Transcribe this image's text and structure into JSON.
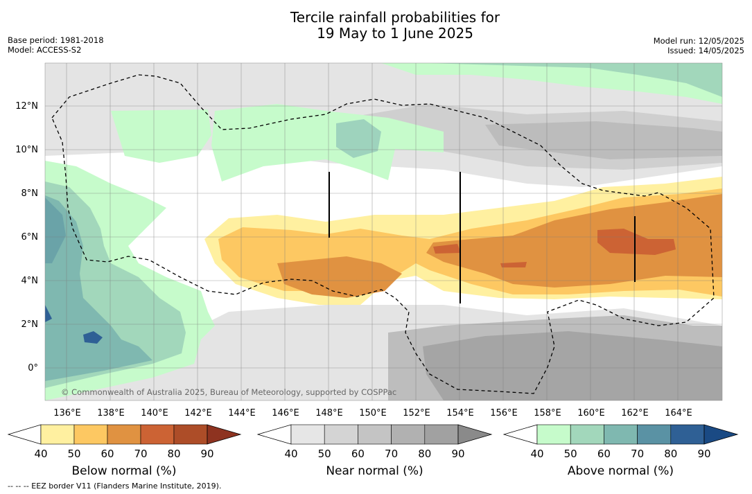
{
  "title_line1": "Tercile rainfall probabilities for",
  "title_line2": "19 May to 1 June 2025",
  "meta_left": {
    "base_period": "Base period: 1981-2018",
    "model": "Model: ACCESS-S2"
  },
  "meta_right": {
    "model_run": "Model run: 12/05/2025",
    "issued": "Issued: 14/05/2025"
  },
  "lat_labels": [
    "12°N",
    "10°N",
    "8°N",
    "6°N",
    "4°N",
    "2°N",
    "0°"
  ],
  "lon_labels": [
    "136°E",
    "138°E",
    "140°E",
    "142°E",
    "144°E",
    "146°E",
    "148°E",
    "150°E",
    "152°E",
    "154°E",
    "156°E",
    "158°E",
    "160°E",
    "162°E",
    "164°E"
  ],
  "copyright": "© Commonwealth of Australia 2025, Bureau of Meteorology, supported by COSPPac",
  "colorbars": [
    {
      "title": "Below normal (%)",
      "ticks": [
        "40",
        "50",
        "60",
        "70",
        "80",
        "90"
      ],
      "colors": [
        "#fff0a0",
        "#fdc862",
        "#e09241",
        "#cc6334",
        "#ad4d28",
        "#8e3320"
      ]
    },
    {
      "title": "Near normal (%)",
      "ticks": [
        "40",
        "50",
        "60",
        "70",
        "80",
        "90"
      ],
      "colors": [
        "#e6e6e6",
        "#d4d4d4",
        "#c4c4c4",
        "#b1b1b1",
        "#a1a1a1",
        "#8a8a8a"
      ]
    },
    {
      "title": "Above normal (%)",
      "ticks": [
        "40",
        "50",
        "60",
        "70",
        "80",
        "90"
      ],
      "colors": [
        "#c6fbcb",
        "#a2d7bb",
        "#7fb8b0",
        "#5a92a4",
        "#2f6095",
        "#1a4a84"
      ]
    }
  ],
  "eez_note": "--  --  -- EEZ border V11 (Flanders Marine Institute, 2019)."
}
